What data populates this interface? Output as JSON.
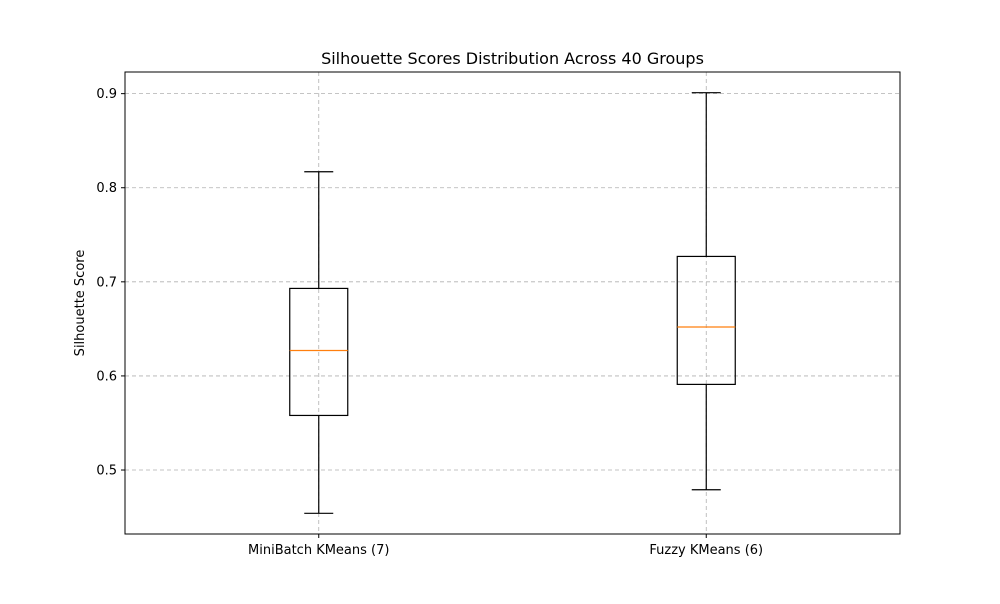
{
  "chart_data": {
    "type": "box",
    "title": "Silhouette Scores Distribution Across 40 Groups",
    "xlabel": "",
    "ylabel": "Silhouette Score",
    "ylim": [
      0.432,
      0.923
    ],
    "yticks": [
      0.5,
      0.6,
      0.7,
      0.8,
      0.9
    ],
    "grid": true,
    "categories": [
      "MiniBatch KMeans (7)",
      "Fuzzy KMeans (6)"
    ],
    "boxes": [
      {
        "label": "MiniBatch KMeans (7)",
        "whisker_low": 0.454,
        "q1": 0.558,
        "median": 0.627,
        "q3": 0.693,
        "whisker_high": 0.817
      },
      {
        "label": "Fuzzy KMeans (6)",
        "whisker_low": 0.479,
        "q1": 0.591,
        "median": 0.652,
        "q3": 0.727,
        "whisker_high": 0.901
      }
    ],
    "colors": {
      "box": "#000000",
      "median": "#ff7f0e",
      "grid": "#b0b0b0"
    }
  }
}
